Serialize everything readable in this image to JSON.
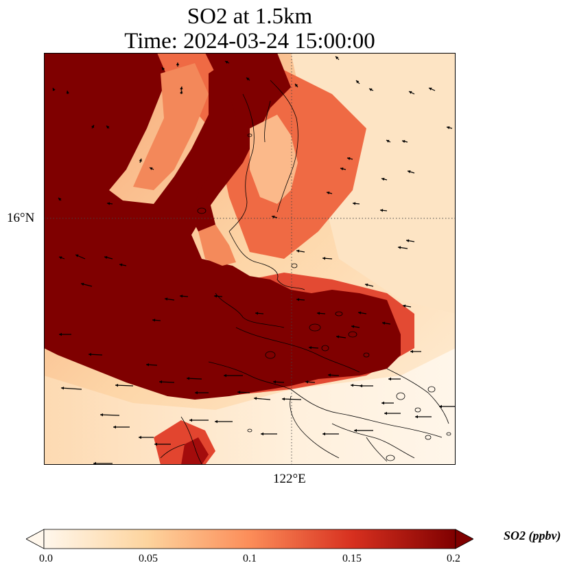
{
  "title": {
    "line1": "SO2 at 1.5km",
    "line2": "Time: 2024-03-24 15:00:00"
  },
  "axes": {
    "lat_tick_label": "16°N",
    "lon_tick_label": "122°E"
  },
  "colorbar": {
    "label": "SO2 (ppbv)",
    "ticks": [
      "0.0",
      "0.05",
      "0.1",
      "0.15",
      "0.2"
    ],
    "min": 0.0,
    "max": 0.2,
    "extend": "both",
    "colormap": "OrRd",
    "colors": [
      "#fff7ec",
      "#fdd49e",
      "#fc8d59",
      "#d7301f",
      "#7f0000"
    ]
  },
  "map_style": {
    "coastline_color": "#000000",
    "gridline_style": "dotted",
    "wind_arrow_color": "#000000"
  }
}
